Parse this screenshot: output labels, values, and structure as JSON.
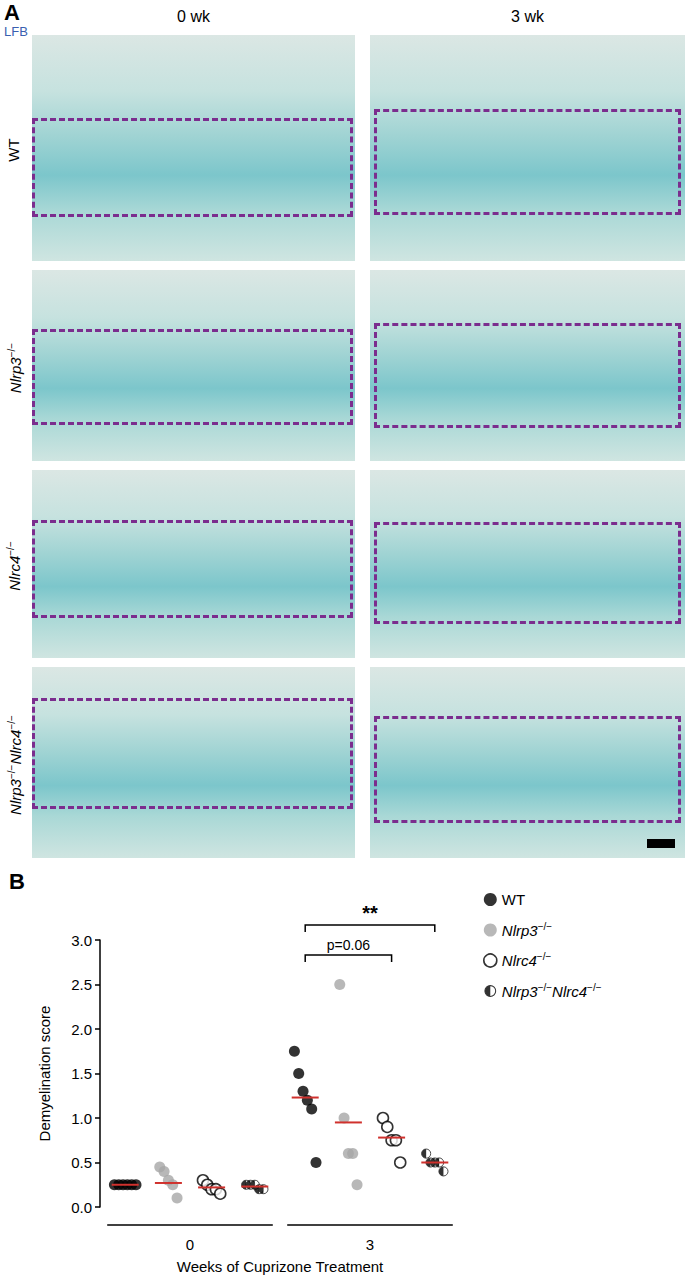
{
  "panel_a": {
    "label": "A",
    "stain": "LFB",
    "columns": [
      "0 wk",
      "3 wk"
    ],
    "rows": [
      "WT",
      "Nlrp3−/−",
      "Nlrc4−/−",
      "Nlrp3−/−Nlrc4−/−"
    ]
  },
  "chart_data": {
    "type": "scatter",
    "title": "B",
    "x_label": "Weeks of Cuprizone Treatment",
    "y_label": "Demyelination score",
    "groups": [
      "0",
      "3"
    ],
    "ylim": [
      0,
      3
    ],
    "yticks": [
      {
        "value": 0,
        "label": "0.0"
      },
      0.5,
      {
        "value": 1,
        "label": "1.0"
      },
      1.5,
      {
        "value": 2,
        "label": "2.0"
      },
      2.5,
      {
        "value": 3,
        "label": "3.0"
      }
    ],
    "grid": false,
    "legend": "right",
    "series": [
      {
        "name": "WT",
        "color": "#000000",
        "marker": "filled",
        "values": [
          [
            0.25,
            0.25,
            0.25,
            0.25,
            0.25,
            0.25
          ],
          [
            1.75,
            1.5,
            1.3,
            1.2,
            1.1,
            0.5
          ]
        ],
        "center_lines": [
          0.25,
          1.23
        ]
      },
      {
        "name": "Nlrp3−/−",
        "color": "#a6a6a6",
        "marker": "filled",
        "values": [
          [
            0.45,
            0.4,
            0.3,
            0.25,
            0.1
          ],
          [
            2.5,
            1.0,
            0.6,
            0.6,
            0.25
          ]
        ],
        "center_lines": [
          0.27,
          0.95
        ]
      },
      {
        "name": "Nlrc4−/−",
        "color": "#000000",
        "marker": "open",
        "values": [
          [
            0.3,
            0.25,
            0.2,
            0.2,
            0.15
          ],
          [
            1.0,
            0.9,
            0.75,
            0.75,
            0.5
          ]
        ],
        "center_lines": [
          0.22,
          0.78
        ]
      },
      {
        "name": "Nlrp3−/−Nlrc4−/−",
        "color": "#000000",
        "marker": "half",
        "values": [
          [
            0.25,
            0.25,
            0.25,
            0.2,
            0.2
          ],
          [
            0.6,
            0.5,
            0.5,
            0.5,
            0.4
          ]
        ],
        "center_lines": [
          0.23,
          0.5
        ]
      }
    ],
    "annotations": [
      {
        "group": "3",
        "from": "WT",
        "to": "Nlrc4−/−",
        "label": "p=0.06"
      },
      {
        "group": "3",
        "from": "WT",
        "to": "Nlrp3−/−Nlrc4−/−",
        "label": "**"
      }
    ]
  }
}
